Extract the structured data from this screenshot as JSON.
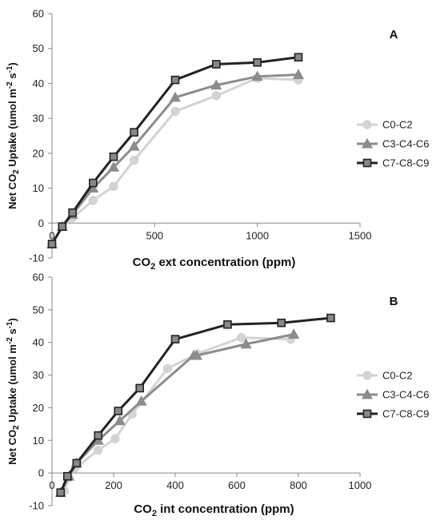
{
  "chart_data": [
    {
      "type": "line",
      "panel_label": "A",
      "xlabel_main": "CO",
      "xlabel_sub": "2",
      "xlabel_rest": " ext concentration (ppm)",
      "ylabel_a": "Net CO",
      "ylabel_sub1": "2",
      "ylabel_b": " Uptake (umol m",
      "ylabel_sup1": "-2",
      "ylabel_c": " s",
      "ylabel_sup2": "-1",
      "ylabel_d": ")",
      "xlim": [
        0,
        1500
      ],
      "ylim": [
        -10,
        60
      ],
      "xticks": [
        0,
        500,
        1000,
        1500
      ],
      "yticks": [
        -10,
        0,
        10,
        20,
        30,
        40,
        50,
        60
      ],
      "grid": false,
      "legend": "right",
      "series": [
        {
          "name": "C0-C2",
          "marker": "circle",
          "color": "#d3d3d3",
          "x": [
            0,
            50,
            100,
            200,
            300,
            400,
            600,
            800,
            1000,
            1200
          ],
          "y": [
            -6,
            -1,
            1.5,
            6.5,
            10.5,
            18,
            32,
            36.5,
            41.5,
            41
          ]
        },
        {
          "name": "C3-C4-C6",
          "marker": "triangle",
          "color": "#8c8c8c",
          "x": [
            0,
            50,
            100,
            200,
            300,
            400,
            600,
            800,
            1000,
            1200
          ],
          "y": [
            -6,
            -1,
            2.5,
            10,
            16,
            22,
            36,
            39.5,
            42,
            42.5
          ]
        },
        {
          "name": "C7-C8-C9",
          "marker": "square",
          "color": "#222222",
          "x": [
            0,
            50,
            100,
            200,
            300,
            400,
            600,
            800,
            1000,
            1200
          ],
          "y": [
            -6,
            -1,
            3,
            11.5,
            19,
            26,
            41,
            45.5,
            46,
            47.5
          ]
        }
      ]
    },
    {
      "type": "line",
      "panel_label": "B",
      "xlabel_main": "CO",
      "xlabel_sub": "2",
      "xlabel_rest": " int concentration (ppm)",
      "ylabel_a": "Net CO",
      "ylabel_sub1": "2",
      "ylabel_b": " Uptake (umol m",
      "ylabel_sup1": "-2",
      "ylabel_c": " s",
      "ylabel_sup2": "-1",
      "ylabel_d": ")",
      "xlim": [
        0,
        1000
      ],
      "ylim": [
        -10,
        60
      ],
      "xticks": [
        0,
        200,
        400,
        600,
        800,
        1000
      ],
      "yticks": [
        -10,
        0,
        10,
        20,
        30,
        40,
        50,
        60
      ],
      "grid": false,
      "legend": "right",
      "series": [
        {
          "name": "C0-C2",
          "marker": "circle",
          "color": "#d3d3d3",
          "x": [
            40,
            55,
            75,
            150,
            205,
            260,
            375,
            470,
            615,
            775
          ],
          "y": [
            -5.5,
            -1.5,
            1.5,
            7,
            10.5,
            18,
            32,
            36.5,
            41.5,
            41
          ]
        },
        {
          "name": "C3-C4-C6",
          "marker": "triangle",
          "color": "#8c8c8c",
          "x": [
            28,
            55,
            80,
            150,
            220,
            290,
            460,
            470,
            630,
            785
          ],
          "y": [
            -6,
            -1,
            3,
            10,
            16,
            22,
            36,
            36,
            39.5,
            42.5
          ]
        },
        {
          "name": "C7-C8-C9",
          "marker": "square",
          "color": "#222222",
          "x": [
            28,
            50,
            80,
            150,
            215,
            285,
            400,
            570,
            745,
            905
          ],
          "y": [
            -6,
            -1,
            3,
            11.5,
            19,
            26,
            41,
            45.5,
            46,
            47.5
          ]
        }
      ]
    }
  ]
}
